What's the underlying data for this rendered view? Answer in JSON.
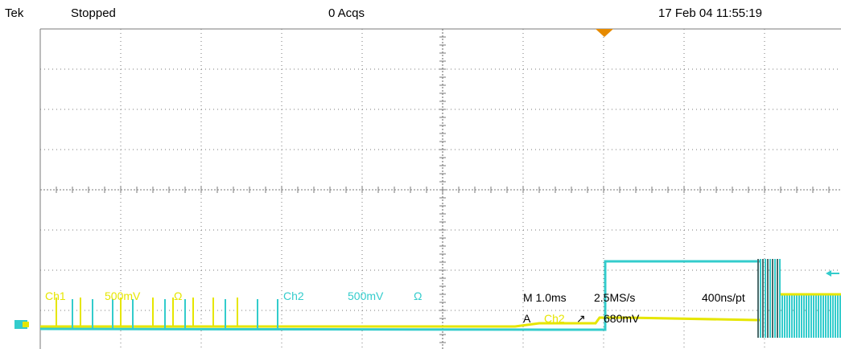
{
  "header": {
    "brand": "Tek",
    "state": "Stopped",
    "acqs": "0 Acqs",
    "datetime": "17 Feb 04 11:55:19"
  },
  "channels": {
    "ch1": {
      "label": "Ch1",
      "scale": "500mV",
      "coupling": "Ω",
      "color": "#e6e600"
    },
    "ch2": {
      "label": "Ch2",
      "scale": "500mV",
      "coupling": "Ω",
      "color": "#33cccc"
    }
  },
  "timebase": {
    "main": "M 1.0ms",
    "sample_rate": "2.5MS/s",
    "per_pt": "400ns/pt"
  },
  "trigger": {
    "prefix": "A",
    "source": "Ch2",
    "slope": "↗",
    "level": "680mV"
  },
  "colors": {
    "grid": "#7a7a7a",
    "trigger_marker": "#e68a00",
    "ground_marker": "#33cccc"
  },
  "icons": {
    "trigger_position": "trigger-position-marker-icon",
    "ground": "channel-ground-marker-icon",
    "trigger_level": "trigger-level-arrow-icon"
  }
}
